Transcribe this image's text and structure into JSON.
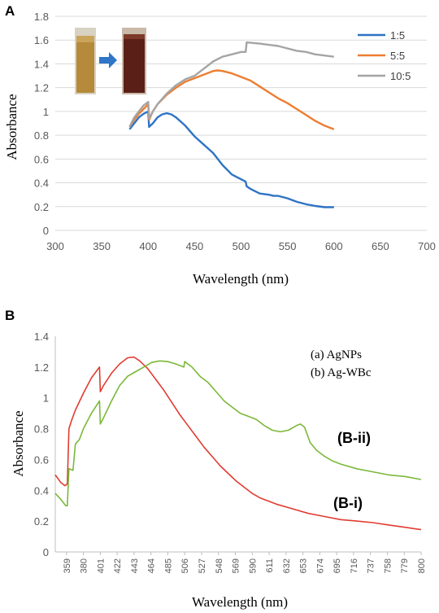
{
  "chart_data": [
    {
      "panel": "A",
      "type": "line",
      "xlabel": "Wavelength (nm)",
      "ylabel": "Absorbance",
      "xlim": [
        300,
        700
      ],
      "ylim": [
        0,
        1.8
      ],
      "xticks": [
        "300",
        "350",
        "400",
        "450",
        "500",
        "550",
        "600",
        "650",
        "700"
      ],
      "yticks": [
        "0",
        "0.2",
        "0.4",
        "0.6",
        "0.8",
        "1",
        "1.2",
        "1.4",
        "1.6",
        "1.8"
      ],
      "grid": true,
      "legend_position": "top-right",
      "series": [
        {
          "name": "1:5",
          "color": "#2e74c4",
          "points": [
            [
              380,
              0.85
            ],
            [
              385,
              0.9
            ],
            [
              390,
              0.95
            ],
            [
              395,
              0.98
            ],
            [
              400,
              1.0
            ],
            [
              401,
              0.87
            ],
            [
              405,
              0.9
            ],
            [
              410,
              0.95
            ],
            [
              415,
              0.975
            ],
            [
              420,
              0.985
            ],
            [
              425,
              0.975
            ],
            [
              430,
              0.95
            ],
            [
              440,
              0.88
            ],
            [
              450,
              0.79
            ],
            [
              460,
              0.72
            ],
            [
              470,
              0.65
            ],
            [
              480,
              0.55
            ],
            [
              490,
              0.47
            ],
            [
              500,
              0.43
            ],
            [
              505,
              0.41
            ],
            [
              506,
              0.37
            ],
            [
              510,
              0.35
            ],
            [
              520,
              0.31
            ],
            [
              530,
              0.3
            ],
            [
              535,
              0.29
            ],
            [
              540,
              0.29
            ],
            [
              550,
              0.27
            ],
            [
              560,
              0.24
            ],
            [
              570,
              0.22
            ],
            [
              580,
              0.205
            ],
            [
              590,
              0.195
            ],
            [
              600,
              0.195
            ]
          ]
        },
        {
          "name": "5:5",
          "color": "#ed7d31",
          "points": [
            [
              380,
              0.87
            ],
            [
              385,
              0.93
            ],
            [
              390,
              0.98
            ],
            [
              395,
              1.02
            ],
            [
              400,
              1.06
            ],
            [
              401,
              0.93
            ],
            [
              405,
              1.0
            ],
            [
              410,
              1.06
            ],
            [
              420,
              1.14
            ],
            [
              430,
              1.2
            ],
            [
              440,
              1.25
            ],
            [
              450,
              1.28
            ],
            [
              460,
              1.31
            ],
            [
              470,
              1.34
            ],
            [
              475,
              1.345
            ],
            [
              480,
              1.34
            ],
            [
              490,
              1.32
            ],
            [
              500,
              1.29
            ],
            [
              510,
              1.26
            ],
            [
              520,
              1.21
            ],
            [
              530,
              1.16
            ],
            [
              540,
              1.11
            ],
            [
              550,
              1.07
            ],
            [
              560,
              1.02
            ],
            [
              570,
              0.97
            ],
            [
              580,
              0.92
            ],
            [
              590,
              0.88
            ],
            [
              600,
              0.85
            ]
          ]
        },
        {
          "name": "10:5",
          "color": "#a5a5a5",
          "points": [
            [
              380,
              0.87
            ],
            [
              385,
              0.95
            ],
            [
              390,
              1.0
            ],
            [
              395,
              1.05
            ],
            [
              400,
              1.08
            ],
            [
              401,
              0.94
            ],
            [
              405,
              1.0
            ],
            [
              410,
              1.06
            ],
            [
              420,
              1.15
            ],
            [
              430,
              1.22
            ],
            [
              440,
              1.27
            ],
            [
              450,
              1.3
            ],
            [
              460,
              1.36
            ],
            [
              470,
              1.42
            ],
            [
              480,
              1.46
            ],
            [
              490,
              1.48
            ],
            [
              500,
              1.5
            ],
            [
              505,
              1.5
            ],
            [
              506,
              1.58
            ],
            [
              520,
              1.57
            ],
            [
              530,
              1.56
            ],
            [
              540,
              1.55
            ],
            [
              550,
              1.53
            ],
            [
              560,
              1.51
            ],
            [
              570,
              1.5
            ],
            [
              580,
              1.48
            ],
            [
              590,
              1.47
            ],
            [
              600,
              1.46
            ]
          ]
        }
      ]
    },
    {
      "panel": "B",
      "type": "line",
      "xlabel": "Wavelength (nm)",
      "ylabel": "Absorbance",
      "xlim": [
        345,
        800
      ],
      "ylim": [
        0,
        1.4
      ],
      "xticks": [
        "359",
        "380",
        "401",
        "422",
        "443",
        "464",
        "485",
        "506",
        "527",
        "548",
        "569",
        "590",
        "611",
        "632",
        "653",
        "674",
        "695",
        "716",
        "737",
        "758",
        "779",
        "800"
      ],
      "yticks": [
        "0",
        "0.2",
        "0.4",
        "0.6",
        "0.8",
        "1",
        "1.2",
        "1.4"
      ],
      "grid": false,
      "legend_position": "top-right",
      "legend_entries": [
        "(a) AgNPs",
        "(b) Ag-WBc"
      ],
      "series": [
        {
          "label": "(B-i)",
          "color": "#e03c31",
          "points": [
            [
              345,
              0.5
            ],
            [
              352,
              0.45
            ],
            [
              357,
              0.43
            ],
            [
              360,
              0.44
            ],
            [
              362,
              0.8
            ],
            [
              365,
              0.85
            ],
            [
              370,
              0.92
            ],
            [
              380,
              1.03
            ],
            [
              390,
              1.13
            ],
            [
              400,
              1.2
            ],
            [
              401,
              1.04
            ],
            [
              405,
              1.08
            ],
            [
              415,
              1.16
            ],
            [
              425,
              1.22
            ],
            [
              435,
              1.26
            ],
            [
              443,
              1.265
            ],
            [
              450,
              1.24
            ],
            [
              460,
              1.19
            ],
            [
              470,
              1.12
            ],
            [
              480,
              1.05
            ],
            [
              490,
              0.97
            ],
            [
              500,
              0.89
            ],
            [
              510,
              0.82
            ],
            [
              520,
              0.75
            ],
            [
              530,
              0.68
            ],
            [
              540,
              0.62
            ],
            [
              550,
              0.56
            ],
            [
              560,
              0.51
            ],
            [
              570,
              0.46
            ],
            [
              580,
              0.42
            ],
            [
              590,
              0.38
            ],
            [
              600,
              0.35
            ],
            [
              620,
              0.31
            ],
            [
              640,
              0.28
            ],
            [
              660,
              0.25
            ],
            [
              680,
              0.23
            ],
            [
              700,
              0.21
            ],
            [
              720,
              0.2
            ],
            [
              740,
              0.19
            ],
            [
              760,
              0.175
            ],
            [
              780,
              0.16
            ],
            [
              800,
              0.145
            ]
          ]
        },
        {
          "label": "(B-ii)",
          "color": "#7cb83a",
          "points": [
            [
              345,
              0.38
            ],
            [
              352,
              0.34
            ],
            [
              358,
              0.3
            ],
            [
              360,
              0.3
            ],
            [
              362,
              0.54
            ],
            [
              367,
              0.53
            ],
            [
              370,
              0.7
            ],
            [
              375,
              0.73
            ],
            [
              380,
              0.8
            ],
            [
              390,
              0.9
            ],
            [
              400,
              0.98
            ],
            [
              401,
              0.83
            ],
            [
              405,
              0.87
            ],
            [
              415,
              0.98
            ],
            [
              425,
              1.08
            ],
            [
              435,
              1.14
            ],
            [
              445,
              1.17
            ],
            [
              455,
              1.2
            ],
            [
              465,
              1.23
            ],
            [
              475,
              1.24
            ],
            [
              485,
              1.235
            ],
            [
              495,
              1.22
            ],
            [
              505,
              1.2
            ],
            [
              506,
              1.235
            ],
            [
              515,
              1.2
            ],
            [
              525,
              1.14
            ],
            [
              535,
              1.1
            ],
            [
              545,
              1.04
            ],
            [
              555,
              0.98
            ],
            [
              565,
              0.94
            ],
            [
              575,
              0.9
            ],
            [
              585,
              0.88
            ],
            [
              595,
              0.86
            ],
            [
              605,
              0.82
            ],
            [
              615,
              0.79
            ],
            [
              625,
              0.78
            ],
            [
              635,
              0.79
            ],
            [
              645,
              0.82
            ],
            [
              650,
              0.83
            ],
            [
              655,
              0.81
            ],
            [
              662,
              0.71
            ],
            [
              670,
              0.66
            ],
            [
              680,
              0.62
            ],
            [
              690,
              0.59
            ],
            [
              700,
              0.57
            ],
            [
              720,
              0.54
            ],
            [
              740,
              0.52
            ],
            [
              760,
              0.5
            ],
            [
              780,
              0.49
            ],
            [
              800,
              0.47
            ]
          ]
        }
      ]
    }
  ]
}
